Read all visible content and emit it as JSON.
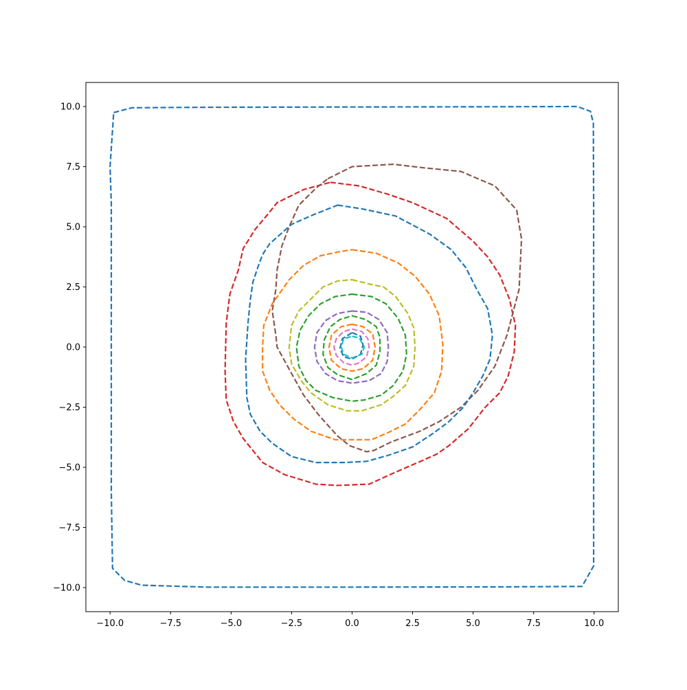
{
  "chart_data": {
    "type": "line",
    "title": "",
    "xlabel": "",
    "ylabel": "",
    "xlim": [
      -11,
      11
    ],
    "ylim": [
      -11,
      11
    ],
    "grid": false,
    "legend": "none",
    "line_style": "dashed",
    "x_ticks": [
      -10.0,
      -7.5,
      -5.0,
      -2.5,
      0.0,
      2.5,
      5.0,
      7.5,
      10.0
    ],
    "y_ticks": [
      -10.0,
      -7.5,
      -5.0,
      -2.5,
      0.0,
      2.5,
      5.0,
      7.5,
      10.0
    ],
    "x_tick_labels": [
      "−10.0",
      "−7.5",
      "−5.0",
      "−2.5",
      "0.0",
      "2.5",
      "5.0",
      "7.5",
      "10.0"
    ],
    "y_tick_labels": [
      "−10.0",
      "−7.5",
      "−5.0",
      "−2.5",
      "0.0",
      "2.5",
      "5.0",
      "7.5",
      "10.0"
    ],
    "series": [
      {
        "color": "#1f77b4",
        "closed": true,
        "points": [
          [
            -9.85,
            9.75
          ],
          [
            -9.1,
            9.95
          ],
          [
            -6.0,
            9.97
          ],
          [
            0.0,
            9.98
          ],
          [
            6.0,
            9.99
          ],
          [
            9.3,
            10.0
          ],
          [
            9.85,
            9.8
          ],
          [
            9.97,
            9.3
          ],
          [
            9.98,
            6.0
          ],
          [
            9.98,
            0.0
          ],
          [
            9.98,
            -6.0
          ],
          [
            9.98,
            -9.1
          ],
          [
            9.5,
            -9.95
          ],
          [
            6.0,
            -9.97
          ],
          [
            0.0,
            -9.98
          ],
          [
            -6.0,
            -9.98
          ],
          [
            -8.7,
            -9.9
          ],
          [
            -9.4,
            -9.7
          ],
          [
            -9.9,
            -9.2
          ],
          [
            -9.95,
            -6.0
          ],
          [
            -9.95,
            0.0
          ],
          [
            -9.95,
            6.0
          ],
          [
            -10.0,
            7.5
          ]
        ]
      },
      {
        "color": "#d62728",
        "closed": true,
        "points": [
          [
            -0.9,
            6.85
          ],
          [
            0.3,
            6.7
          ],
          [
            1.5,
            6.35
          ],
          [
            2.5,
            6.0
          ],
          [
            3.9,
            5.35
          ],
          [
            5.0,
            4.4
          ],
          [
            5.6,
            3.75
          ],
          [
            6.1,
            3.0
          ],
          [
            6.5,
            2.0
          ],
          [
            6.75,
            0.9
          ],
          [
            6.7,
            -0.2
          ],
          [
            6.45,
            -1.2
          ],
          [
            6.1,
            -1.9
          ],
          [
            5.5,
            -2.5
          ],
          [
            4.8,
            -3.4
          ],
          [
            4.0,
            -4.1
          ],
          [
            3.5,
            -4.45
          ],
          [
            2.6,
            -4.85
          ],
          [
            1.8,
            -5.2
          ],
          [
            0.7,
            -5.7
          ],
          [
            -0.6,
            -5.75
          ],
          [
            -1.5,
            -5.7
          ],
          [
            -2.8,
            -5.3
          ],
          [
            -3.7,
            -4.8
          ],
          [
            -4.5,
            -3.8
          ],
          [
            -4.9,
            -3.1
          ],
          [
            -5.2,
            -2.2
          ],
          [
            -5.25,
            -1.0
          ],
          [
            -5.2,
            1.0
          ],
          [
            -5.05,
            2.2
          ],
          [
            -4.7,
            3.2
          ],
          [
            -4.5,
            4.1
          ],
          [
            -4.0,
            4.9
          ],
          [
            -3.5,
            5.5
          ],
          [
            -3.1,
            6.0
          ],
          [
            -2.0,
            6.55
          ]
        ]
      },
      {
        "color": "#8c564b",
        "closed": true,
        "points": [
          [
            -1.0,
            7.0
          ],
          [
            0.0,
            7.5
          ],
          [
            1.7,
            7.6
          ],
          [
            3.0,
            7.45
          ],
          [
            4.5,
            7.3
          ],
          [
            5.9,
            6.7
          ],
          [
            6.8,
            5.7
          ],
          [
            7.0,
            4.5
          ],
          [
            6.9,
            2.4
          ],
          [
            6.4,
            0.5
          ],
          [
            5.9,
            -0.8
          ],
          [
            5.2,
            -1.8
          ],
          [
            4.5,
            -2.5
          ],
          [
            3.6,
            -3.1
          ],
          [
            2.8,
            -3.5
          ],
          [
            1.6,
            -3.95
          ],
          [
            0.9,
            -4.3
          ],
          [
            0.6,
            -4.35
          ],
          [
            -0.1,
            -4.1
          ],
          [
            -0.6,
            -3.7
          ],
          [
            -1.4,
            -2.8
          ],
          [
            -2.0,
            -2.0
          ],
          [
            -2.5,
            -1.1
          ],
          [
            -3.1,
            0.0
          ],
          [
            -3.15,
            0.5
          ],
          [
            -3.3,
            1.5
          ],
          [
            -3.15,
            2.4
          ],
          [
            -3.1,
            3.2
          ],
          [
            -2.9,
            4.2
          ],
          [
            -2.6,
            5.0
          ],
          [
            -2.2,
            5.9
          ],
          [
            -1.5,
            6.6
          ]
        ]
      },
      {
        "color": "#1f77b4",
        "closed": true,
        "points": [
          [
            -0.6,
            5.9
          ],
          [
            0.4,
            5.75
          ],
          [
            1.8,
            5.45
          ],
          [
            3.2,
            4.7
          ],
          [
            4.1,
            4.05
          ],
          [
            4.7,
            3.3
          ],
          [
            5.15,
            2.4
          ],
          [
            5.6,
            1.6
          ],
          [
            5.8,
            0.5
          ],
          [
            5.7,
            -0.5
          ],
          [
            5.4,
            -1.2
          ],
          [
            5.0,
            -1.9
          ],
          [
            4.6,
            -2.5
          ],
          [
            4.0,
            -3.1
          ],
          [
            3.4,
            -3.55
          ],
          [
            2.5,
            -4.15
          ],
          [
            1.5,
            -4.5
          ],
          [
            0.6,
            -4.75
          ],
          [
            -0.3,
            -4.8
          ],
          [
            -1.5,
            -4.8
          ],
          [
            -2.5,
            -4.55
          ],
          [
            -3.3,
            -4.0
          ],
          [
            -3.8,
            -3.5
          ],
          [
            -4.2,
            -2.8
          ],
          [
            -4.35,
            -2.1
          ],
          [
            -4.4,
            -0.5
          ],
          [
            -4.3,
            1.0
          ],
          [
            -4.2,
            2.0
          ],
          [
            -4.1,
            2.7
          ],
          [
            -3.9,
            3.3
          ],
          [
            -3.7,
            3.85
          ],
          [
            -3.4,
            4.3
          ],
          [
            -2.5,
            5.1
          ],
          [
            -1.6,
            5.5
          ]
        ]
      },
      {
        "color": "#ff7f0e",
        "closed": true,
        "points": [
          [
            0.0,
            4.05
          ],
          [
            1.0,
            3.9
          ],
          [
            1.9,
            3.5
          ],
          [
            2.6,
            2.95
          ],
          [
            3.2,
            2.2
          ],
          [
            3.6,
            1.3
          ],
          [
            3.75,
            0.1
          ],
          [
            3.7,
            -1.0
          ],
          [
            3.4,
            -1.9
          ],
          [
            2.8,
            -2.6
          ],
          [
            2.2,
            -3.2
          ],
          [
            1.5,
            -3.55
          ],
          [
            0.8,
            -3.85
          ],
          [
            0.0,
            -3.85
          ],
          [
            -0.7,
            -3.85
          ],
          [
            -1.7,
            -3.5
          ],
          [
            -2.4,
            -3.0
          ],
          [
            -3.0,
            -2.4
          ],
          [
            -3.4,
            -1.8
          ],
          [
            -3.7,
            -1.0
          ],
          [
            -3.7,
            0.0
          ],
          [
            -3.65,
            0.9
          ],
          [
            -3.3,
            1.8
          ],
          [
            -2.6,
            2.8
          ],
          [
            -2.0,
            3.4
          ],
          [
            -1.3,
            3.8
          ],
          [
            -0.6,
            3.95
          ]
        ]
      },
      {
        "color": "#bcbd22",
        "closed": true,
        "points": [
          [
            0.0,
            2.8
          ],
          [
            0.8,
            2.6
          ],
          [
            1.3,
            2.5
          ],
          [
            1.8,
            2.1
          ],
          [
            2.3,
            1.4
          ],
          [
            2.55,
            0.8
          ],
          [
            2.6,
            0.0
          ],
          [
            2.55,
            -0.8
          ],
          [
            2.2,
            -1.6
          ],
          [
            1.7,
            -2.05
          ],
          [
            1.2,
            -2.4
          ],
          [
            0.4,
            -2.65
          ],
          [
            -0.2,
            -2.65
          ],
          [
            -1.0,
            -2.4
          ],
          [
            -1.7,
            -1.9
          ],
          [
            -2.1,
            -1.4
          ],
          [
            -2.5,
            -0.7
          ],
          [
            -2.6,
            0.0
          ],
          [
            -2.5,
            0.9
          ],
          [
            -2.2,
            1.5
          ],
          [
            -1.7,
            2.0
          ],
          [
            -1.2,
            2.5
          ],
          [
            -0.6,
            2.75
          ]
        ]
      },
      {
        "color": "#2ca02c",
        "closed": true,
        "points": [
          [
            0.0,
            2.2
          ],
          [
            0.8,
            2.1
          ],
          [
            1.4,
            1.8
          ],
          [
            1.9,
            1.2
          ],
          [
            2.2,
            0.5
          ],
          [
            2.25,
            -0.3
          ],
          [
            2.1,
            -1.0
          ],
          [
            1.7,
            -1.6
          ],
          [
            1.2,
            -2.0
          ],
          [
            0.5,
            -2.2
          ],
          [
            0.0,
            -2.25
          ],
          [
            -0.8,
            -2.1
          ],
          [
            -1.5,
            -1.8
          ],
          [
            -1.9,
            -1.4
          ],
          [
            -2.2,
            -0.8
          ],
          [
            -2.3,
            0.0
          ],
          [
            -2.15,
            0.7
          ],
          [
            -1.8,
            1.3
          ],
          [
            -1.3,
            1.8
          ],
          [
            -0.7,
            2.1
          ]
        ]
      },
      {
        "color": "#9467bd",
        "closed": true,
        "points": [
          [
            0.0,
            1.5
          ],
          [
            0.6,
            1.45
          ],
          [
            1.1,
            1.15
          ],
          [
            1.45,
            0.6
          ],
          [
            1.5,
            0.0
          ],
          [
            1.45,
            -0.6
          ],
          [
            1.2,
            -1.1
          ],
          [
            0.7,
            -1.4
          ],
          [
            0.0,
            -1.5
          ],
          [
            -0.6,
            -1.4
          ],
          [
            -1.1,
            -1.1
          ],
          [
            -1.45,
            -0.6
          ],
          [
            -1.55,
            0.0
          ],
          [
            -1.45,
            0.6
          ],
          [
            -1.1,
            1.1
          ],
          [
            -0.6,
            1.4
          ]
        ]
      },
      {
        "color": "#2ca02c",
        "closed": true,
        "points": [
          [
            0.0,
            1.3
          ],
          [
            0.55,
            1.15
          ],
          [
            1.0,
            0.85
          ],
          [
            1.15,
            0.4
          ],
          [
            1.15,
            -0.2
          ],
          [
            1.0,
            -0.75
          ],
          [
            0.6,
            -1.1
          ],
          [
            0.0,
            -1.35
          ],
          [
            -0.6,
            -1.15
          ],
          [
            -1.0,
            -0.85
          ],
          [
            -1.2,
            -0.3
          ],
          [
            -1.15,
            0.3
          ],
          [
            -0.9,
            0.85
          ],
          [
            -0.5,
            1.15
          ]
        ]
      },
      {
        "color": "#ff7f0e",
        "closed": true,
        "points": [
          [
            0.0,
            0.95
          ],
          [
            0.45,
            0.85
          ],
          [
            0.85,
            0.55
          ],
          [
            0.95,
            0.0
          ],
          [
            0.85,
            -0.55
          ],
          [
            0.45,
            -0.9
          ],
          [
            0.0,
            -1.0
          ],
          [
            -0.45,
            -0.9
          ],
          [
            -0.85,
            -0.55
          ],
          [
            -0.95,
            0.0
          ],
          [
            -0.85,
            0.5
          ],
          [
            -0.45,
            0.85
          ]
        ]
      },
      {
        "color": "#e377c2",
        "closed": true,
        "points": [
          [
            0.0,
            0.75
          ],
          [
            0.4,
            0.65
          ],
          [
            0.65,
            0.35
          ],
          [
            0.7,
            0.0
          ],
          [
            0.6,
            -0.4
          ],
          [
            0.3,
            -0.65
          ],
          [
            0.0,
            -0.75
          ],
          [
            -0.35,
            -0.65
          ],
          [
            -0.65,
            -0.35
          ],
          [
            -0.75,
            0.0
          ],
          [
            -0.65,
            0.35
          ],
          [
            -0.35,
            0.65
          ]
        ]
      },
      {
        "color": "#1f77b4",
        "closed": true,
        "points": [
          [
            0.0,
            0.6
          ],
          [
            0.35,
            0.45
          ],
          [
            0.45,
            0.1
          ],
          [
            0.35,
            -0.3
          ],
          [
            0.0,
            -0.5
          ],
          [
            -0.35,
            -0.4
          ],
          [
            -0.5,
            -0.05
          ],
          [
            -0.4,
            0.35
          ]
        ]
      },
      {
        "color": "#17becf",
        "closed": true,
        "points": [
          [
            0.0,
            0.45
          ],
          [
            0.3,
            0.38
          ],
          [
            0.5,
            0.0
          ],
          [
            0.4,
            -0.3
          ],
          [
            0.0,
            -0.45
          ],
          [
            -0.35,
            -0.3
          ],
          [
            -0.45,
            0.0
          ],
          [
            -0.35,
            0.35
          ]
        ]
      }
    ]
  }
}
